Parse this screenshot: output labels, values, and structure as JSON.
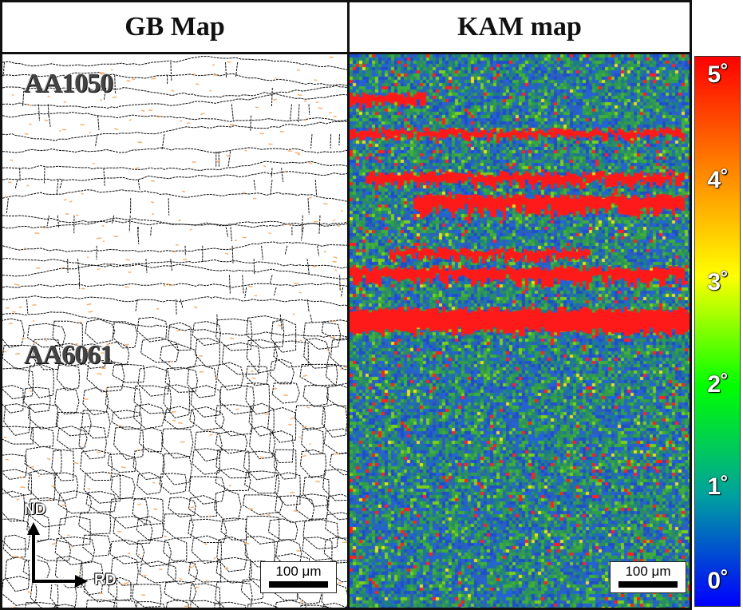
{
  "headers": {
    "gb_map": "GB Map",
    "kam_map": "KAM map"
  },
  "gb_panel": {
    "alloy_top": "AA1050",
    "alloy_bottom": "AA6061",
    "axis_nd": "ND",
    "axis_rd": "RD",
    "scalebar": "100 μm"
  },
  "kam_panel": {
    "scalebar": "100 μm"
  },
  "colorbar": {
    "ticks": [
      "5˚",
      "4˚",
      "3˚",
      "2˚",
      "1˚",
      "0˚"
    ],
    "colors": [
      "#ff0000",
      "#ff8000",
      "#ffff00",
      "#00ff00",
      "#00a0a0",
      "#0000ff"
    ]
  },
  "colors": {
    "kam_blue": "#2255cc",
    "kam_green": "#2e9a4a",
    "kam_red": "#ff1a1a",
    "grain_line": "#111111",
    "low_angle": "#f5b070"
  }
}
